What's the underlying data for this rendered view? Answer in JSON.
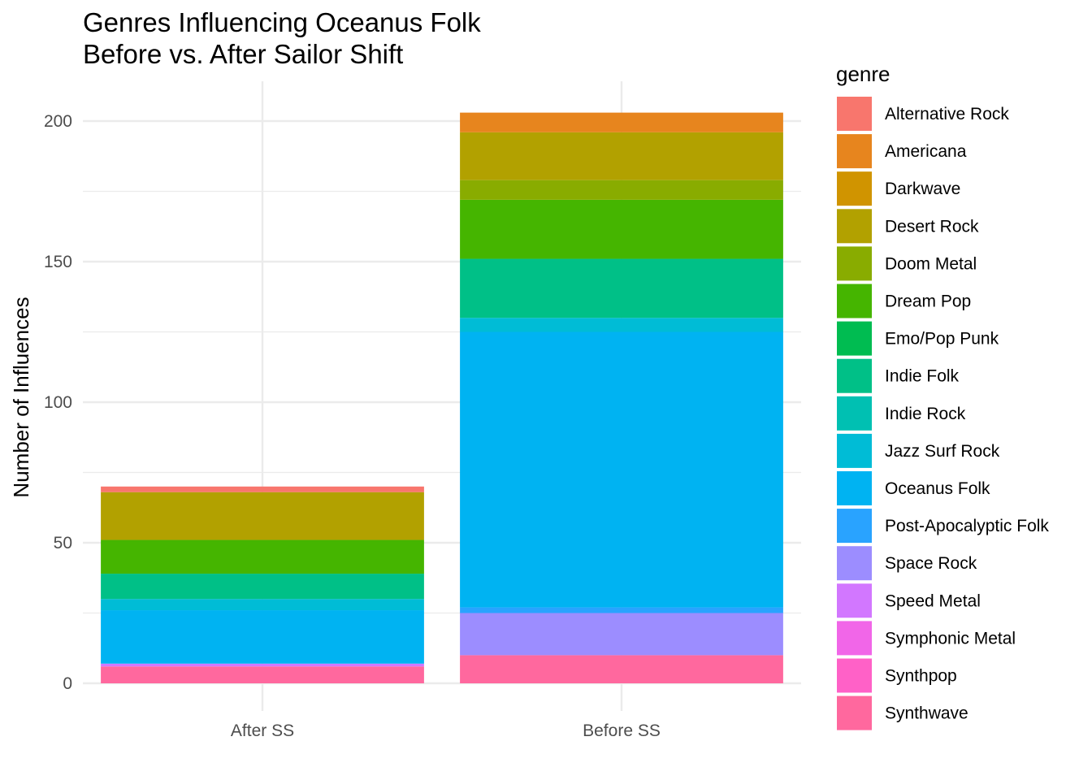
{
  "chart_data": {
    "type": "bar",
    "stacked": true,
    "title_lines": [
      "Genres Influencing Oceanus Folk",
      "Before vs. After Sailor Shift"
    ],
    "xlabel": "",
    "ylabel": "Number of Influences",
    "categories": [
      "After SS",
      "Before SS"
    ],
    "ylim": [
      0,
      210
    ],
    "y_ticks": [
      0,
      50,
      100,
      150,
      200
    ],
    "grid": true,
    "legend_title": "genre",
    "legend_position": "right",
    "series": [
      {
        "name": "Alternative Rock",
        "color": "#F8766D",
        "values": [
          2,
          0
        ]
      },
      {
        "name": "Americana",
        "color": "#E7851E",
        "values": [
          0,
          7
        ]
      },
      {
        "name": "Darkwave",
        "color": "#D09400",
        "values": [
          0,
          0
        ]
      },
      {
        "name": "Desert Rock",
        "color": "#B2A100",
        "values": [
          17,
          17
        ]
      },
      {
        "name": "Doom Metal",
        "color": "#89AC00",
        "values": [
          0,
          7
        ]
      },
      {
        "name": "Dream Pop",
        "color": "#45B500",
        "values": [
          12,
          21
        ]
      },
      {
        "name": "Emo/Pop Punk",
        "color": "#00BC51",
        "values": [
          0,
          0
        ]
      },
      {
        "name": "Indie Folk",
        "color": "#00C087",
        "values": [
          9,
          21
        ]
      },
      {
        "name": "Indie Rock",
        "color": "#00C0B2",
        "values": [
          0,
          0
        ]
      },
      {
        "name": "Jazz Surf Rock",
        "color": "#00BCD6",
        "values": [
          4,
          5
        ]
      },
      {
        "name": "Oceanus Folk",
        "color": "#00B3F2",
        "values": [
          19,
          98
        ]
      },
      {
        "name": "Post-Apocalyptic Folk",
        "color": "#29A3FF",
        "values": [
          0,
          2
        ]
      },
      {
        "name": "Space Rock",
        "color": "#9C8DFF",
        "values": [
          0,
          15
        ]
      },
      {
        "name": "Speed Metal",
        "color": "#D277FF",
        "values": [
          1,
          0
        ]
      },
      {
        "name": "Symphonic Metal",
        "color": "#F166E8",
        "values": [
          0,
          0
        ]
      },
      {
        "name": "Synthpop",
        "color": "#FF61C7",
        "values": [
          0,
          0
        ]
      },
      {
        "name": "Synthwave",
        "color": "#FF689E",
        "values": [
          6,
          10
        ]
      }
    ]
  }
}
